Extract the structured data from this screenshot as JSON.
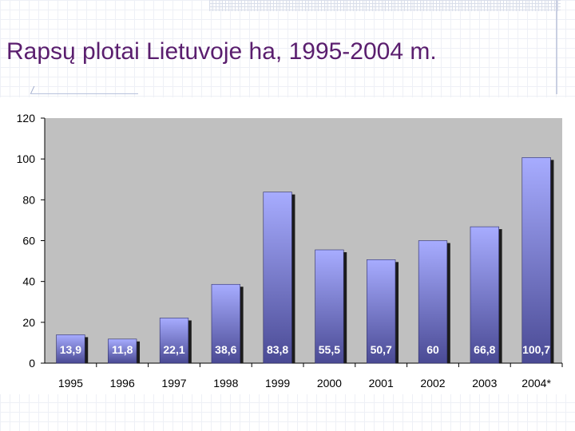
{
  "title": "Rapsų plotai Lietuvoje ha, 1995-2004 m.",
  "chart_data": {
    "type": "bar",
    "categories": [
      "1995",
      "1996",
      "1997",
      "1998",
      "1999",
      "2000",
      "2001",
      "2002",
      "2003",
      "2004*"
    ],
    "values": [
      13.9,
      11.8,
      22.1,
      38.6,
      83.8,
      55.5,
      50.7,
      60,
      66.8,
      100.7
    ],
    "value_labels": [
      "13,9",
      "11,8",
      "22,1",
      "38,6",
      "83,8",
      "55,5",
      "50,7",
      "60",
      "66,8",
      "100,7"
    ],
    "ylim": [
      0,
      120
    ],
    "yticks": [
      0,
      20,
      40,
      60,
      80,
      100,
      120
    ],
    "grid": false,
    "legend": "none",
    "colors": {
      "plot_bg": "#c0c0c0",
      "bar_top": "#a7acff",
      "bar_bottom": "#4a4a94",
      "bar_shadow": "#1c1c1c",
      "value_label": "#ffffff",
      "title": "#5a1e6e"
    }
  }
}
